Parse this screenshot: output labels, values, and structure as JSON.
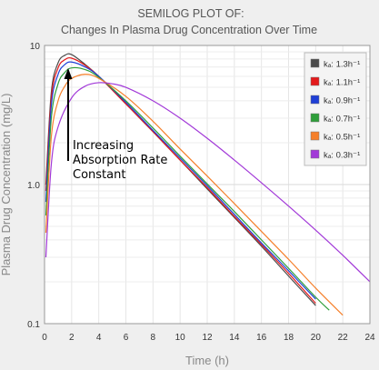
{
  "chart_data": {
    "type": "line",
    "title_line1": "SEMILOG PLOT OF:",
    "title_line2": "Changes In Plasma Drug Concentration Over Time",
    "xlabel": "Time (h)",
    "ylabel": "Plasma Drug Concentration (mg/L)",
    "xlim": [
      0,
      24
    ],
    "ylim": [
      0.1,
      10
    ],
    "yscale": "log",
    "grid": true,
    "legend_position": "top-right",
    "x_ticks": [
      "0",
      "2",
      "4",
      "6",
      "8",
      "10",
      "12",
      "14",
      "16",
      "18",
      "20",
      "22",
      "24"
    ],
    "y_ticks": [
      "10",
      "1.0",
      "0.1"
    ],
    "annotation": [
      "Increasing",
      "Absorption Rate",
      "Constant"
    ],
    "series": [
      {
        "name": "kₐ: 1.3h⁻¹",
        "color": "#4b4b4b",
        "x": [
          0.1,
          0.5,
          1,
          1.5,
          2,
          3,
          4,
          6,
          8,
          10,
          12,
          14,
          16,
          18,
          20
        ],
        "y": [
          1.0,
          4.6,
          7.5,
          8.5,
          8.6,
          7.3,
          6.0,
          3.8,
          2.4,
          1.5,
          0.93,
          0.58,
          0.36,
          0.22,
          0.135
        ]
      },
      {
        "name": "kₐ: 1.1h⁻¹",
        "color": "#e31a1c",
        "x": [
          0.1,
          0.5,
          1,
          1.5,
          2,
          3,
          4,
          6,
          8,
          10,
          12,
          14,
          16,
          18,
          20
        ],
        "y": [
          0.9,
          4.2,
          6.9,
          7.9,
          8.1,
          7.2,
          6.0,
          3.8,
          2.4,
          1.5,
          0.95,
          0.59,
          0.37,
          0.23,
          0.14
        ]
      },
      {
        "name": "kₐ: 0.9h⁻¹",
        "color": "#1f3fd6",
        "x": [
          0.1,
          0.5,
          1,
          1.5,
          2,
          3,
          4,
          6,
          8,
          10,
          12,
          14,
          16,
          18,
          20
        ],
        "y": [
          0.75,
          3.7,
          6.2,
          7.3,
          7.6,
          7.0,
          6.0,
          3.9,
          2.45,
          1.55,
          0.98,
          0.61,
          0.38,
          0.24,
          0.15
        ]
      },
      {
        "name": "kₐ: 0.7h⁻¹",
        "color": "#2e9e3a",
        "x": [
          0.1,
          0.5,
          1,
          1.5,
          2,
          3,
          4,
          6,
          8,
          10,
          12,
          14,
          16,
          18,
          20,
          21
        ],
        "y": [
          0.6,
          3.0,
          5.3,
          6.4,
          6.9,
          6.7,
          5.9,
          4.0,
          2.55,
          1.6,
          1.01,
          0.64,
          0.4,
          0.25,
          0.155,
          0.125
        ]
      },
      {
        "name": "kₐ: 0.5h⁻¹",
        "color": "#f57f2a",
        "x": [
          0.1,
          0.5,
          1,
          1.5,
          2,
          3,
          4,
          6,
          8,
          10,
          12,
          14,
          16,
          18,
          20,
          22
        ],
        "y": [
          0.45,
          2.2,
          4.0,
          5.1,
          5.8,
          6.2,
          5.8,
          4.3,
          2.85,
          1.8,
          1.15,
          0.73,
          0.46,
          0.29,
          0.18,
          0.115
        ]
      },
      {
        "name": "kₐ: 0.3h⁻¹",
        "color": "#a239d8",
        "x": [
          0.1,
          0.5,
          1,
          2,
          3,
          4,
          5,
          6,
          8,
          10,
          12,
          14,
          16,
          18,
          20,
          22,
          24
        ],
        "y": [
          0.3,
          1.4,
          2.6,
          4.2,
          5.1,
          5.4,
          5.3,
          5.0,
          4.0,
          3.0,
          2.15,
          1.5,
          1.03,
          0.7,
          0.47,
          0.31,
          0.2
        ]
      }
    ]
  }
}
